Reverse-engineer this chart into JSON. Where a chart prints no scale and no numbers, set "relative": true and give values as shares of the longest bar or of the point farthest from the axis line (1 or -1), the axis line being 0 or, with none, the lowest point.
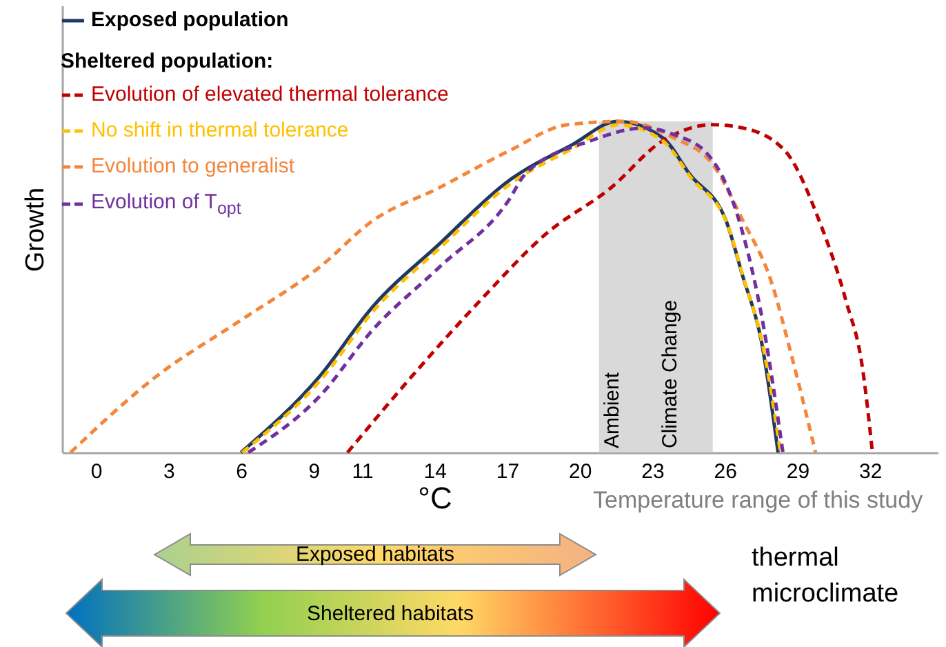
{
  "chart_data": {
    "type": "line",
    "relative": true,
    "xlabel": "°C",
    "ylabel": "Growth",
    "legend_title": "Sheltered population:",
    "legend": "top left",
    "xlim": [
      -1.4,
      34.8
    ],
    "xticks": [
      0,
      3,
      6,
      9,
      11,
      14,
      17,
      20,
      23,
      26,
      29,
      32
    ],
    "bands": [
      {
        "axis": "x",
        "from": 20.8,
        "to": 23.2,
        "label": "Ambient",
        "color": "#d9d9d9"
      },
      {
        "axis": "x",
        "from": 23.2,
        "to": 25.5,
        "label": "Climate Change",
        "color": "#d9d9d9"
      }
    ],
    "annotations": [
      "Temperature range of this study",
      "Exposed habitats",
      "Sheltered habitats",
      "thermal microclimate"
    ],
    "series": [
      {
        "name": "Exposed population",
        "color": "#1f3864",
        "line_style": "solid",
        "x": [
          6.0,
          9.25,
          11.44,
          14.2,
          17.05,
          19.7,
          21.55,
          23.44,
          24.55,
          26.05,
          26.75,
          27.5,
          28.2
        ],
        "values": [
          0,
          0.23,
          0.44,
          0.63,
          0.82,
          0.93,
          1.0,
          0.95,
          0.84,
          0.7,
          0.53,
          0.34,
          0
        ]
      },
      {
        "name": "Evolution of elevated thermal tolerance",
        "color": "#c00000",
        "line_style": "dashed",
        "x": [
          10.4,
          13.3,
          15.9,
          18.6,
          21.3,
          23.4,
          25.5,
          26.75,
          28.5,
          29.9,
          31.0,
          31.7,
          32.1
        ],
        "values": [
          0,
          0.25,
          0.46,
          0.66,
          0.8,
          0.94,
          0.99,
          0.98,
          0.91,
          0.7,
          0.46,
          0.25,
          0
        ]
      },
      {
        "name": "No shift in thermal tolerance",
        "color": "#ffc000",
        "line_style": "dashed",
        "x": [
          6.05,
          9.3,
          11.5,
          14.25,
          17.1,
          19.75,
          21.6,
          23.45,
          24.6,
          26.1,
          26.8,
          27.55,
          28.3
        ],
        "values": [
          0,
          0.22,
          0.43,
          0.62,
          0.81,
          0.92,
          0.99,
          0.94,
          0.83,
          0.69,
          0.52,
          0.33,
          0
        ]
      },
      {
        "name": "Evolution to generalist",
        "color": "#f4863c",
        "line_style": "dashed",
        "x": [
          -1.05,
          2.5,
          6.0,
          9.25,
          11.44,
          14.2,
          17.05,
          19.5,
          21.8,
          23.9,
          25.5,
          26.75,
          27.9,
          28.8,
          29.75
        ],
        "values": [
          0,
          0.23,
          0.4,
          0.56,
          0.7,
          0.8,
          0.91,
          0.99,
          1.0,
          0.95,
          0.87,
          0.7,
          0.52,
          0.28,
          0
        ]
      },
      {
        "name": "Evolution of T$_{opt}$",
        "color": "#7030a0",
        "line_style": "dashed",
        "x": [
          6.3,
          9.25,
          11.44,
          14.2,
          17.05,
          17.74,
          20.4,
          22.7,
          23.9,
          25.3,
          26.05,
          26.75,
          27.5,
          28.4
        ],
        "values": [
          0,
          0.17,
          0.37,
          0.56,
          0.76,
          0.84,
          0.94,
          0.98,
          0.96,
          0.9,
          0.81,
          0.66,
          0.42,
          0
        ]
      }
    ]
  }
}
